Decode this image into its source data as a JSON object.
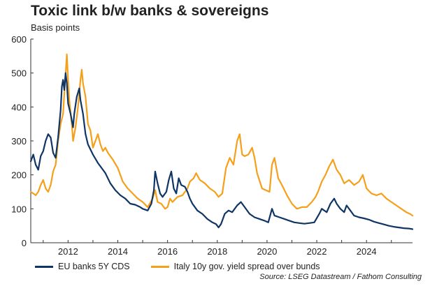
{
  "chart_data": {
    "type": "line",
    "title": "Toxic link b/w banks & sovereigns",
    "ylabel": "Basis points",
    "xlabel": "",
    "xlim": [
      2010.5,
      2025.85
    ],
    "ylim": [
      0,
      600
    ],
    "yticks": [
      0,
      100,
      200,
      300,
      400,
      500,
      600
    ],
    "xticks": [
      2012,
      2014,
      2016,
      2018,
      2020,
      2022,
      2024
    ],
    "yticklabels": [
      "0",
      "100",
      "200",
      "300",
      "400",
      "500",
      "600"
    ],
    "xticklabels": [
      "2012",
      "2014",
      "2016",
      "2018",
      "2020",
      "2022",
      "2024"
    ],
    "grid": false,
    "legend_position": "bottom",
    "series": [
      {
        "name": "EU banks 5Y CDS",
        "color": "#0f3566",
        "points": [
          [
            2010.5,
            240
          ],
          [
            2010.6,
            260
          ],
          [
            2010.7,
            230
          ],
          [
            2010.8,
            215
          ],
          [
            2010.9,
            255
          ],
          [
            2011.0,
            270
          ],
          [
            2011.1,
            300
          ],
          [
            2011.2,
            320
          ],
          [
            2011.3,
            310
          ],
          [
            2011.4,
            265
          ],
          [
            2011.5,
            250
          ],
          [
            2011.6,
            310
          ],
          [
            2011.7,
            390
          ],
          [
            2011.75,
            460
          ],
          [
            2011.8,
            480
          ],
          [
            2011.85,
            450
          ],
          [
            2011.9,
            500
          ],
          [
            2011.95,
            470
          ],
          [
            2012.0,
            410
          ],
          [
            2012.1,
            380
          ],
          [
            2012.2,
            340
          ],
          [
            2012.25,
            380
          ],
          [
            2012.35,
            430
          ],
          [
            2012.45,
            455
          ],
          [
            2012.5,
            420
          ],
          [
            2012.6,
            380
          ],
          [
            2012.7,
            320
          ],
          [
            2012.8,
            290
          ],
          [
            2013.0,
            260
          ],
          [
            2013.2,
            235
          ],
          [
            2013.4,
            215
          ],
          [
            2013.5,
            205
          ],
          [
            2013.7,
            175
          ],
          [
            2013.9,
            155
          ],
          [
            2014.1,
            140
          ],
          [
            2014.3,
            130
          ],
          [
            2014.5,
            115
          ],
          [
            2014.7,
            112
          ],
          [
            2014.9,
            105
          ],
          [
            2015.0,
            100
          ],
          [
            2015.2,
            95
          ],
          [
            2015.35,
            115
          ],
          [
            2015.45,
            155
          ],
          [
            2015.5,
            210
          ],
          [
            2015.6,
            175
          ],
          [
            2015.7,
            145
          ],
          [
            2015.8,
            135
          ],
          [
            2015.95,
            150
          ],
          [
            2016.05,
            185
          ],
          [
            2016.15,
            210
          ],
          [
            2016.25,
            160
          ],
          [
            2016.35,
            145
          ],
          [
            2016.45,
            190
          ],
          [
            2016.55,
            170
          ],
          [
            2016.7,
            165
          ],
          [
            2016.8,
            150
          ],
          [
            2016.9,
            130
          ],
          [
            2017.0,
            115
          ],
          [
            2017.2,
            95
          ],
          [
            2017.4,
            85
          ],
          [
            2017.6,
            70
          ],
          [
            2017.8,
            60
          ],
          [
            2017.95,
            55
          ],
          [
            2018.05,
            45
          ],
          [
            2018.15,
            55
          ],
          [
            2018.3,
            85
          ],
          [
            2018.45,
            95
          ],
          [
            2018.6,
            90
          ],
          [
            2018.8,
            110
          ],
          [
            2018.95,
            120
          ],
          [
            2019.1,
            105
          ],
          [
            2019.3,
            85
          ],
          [
            2019.5,
            75
          ],
          [
            2019.7,
            70
          ],
          [
            2019.9,
            65
          ],
          [
            2020.05,
            60
          ],
          [
            2020.2,
            100
          ],
          [
            2020.3,
            80
          ],
          [
            2020.5,
            75
          ],
          [
            2020.7,
            70
          ],
          [
            2020.9,
            65
          ],
          [
            2021.1,
            60
          ],
          [
            2021.3,
            58
          ],
          [
            2021.5,
            56
          ],
          [
            2021.7,
            58
          ],
          [
            2021.9,
            60
          ],
          [
            2022.1,
            85
          ],
          [
            2022.2,
            100
          ],
          [
            2022.4,
            90
          ],
          [
            2022.55,
            115
          ],
          [
            2022.7,
            130
          ],
          [
            2022.8,
            115
          ],
          [
            2022.95,
            100
          ],
          [
            2023.1,
            90
          ],
          [
            2023.2,
            110
          ],
          [
            2023.35,
            95
          ],
          [
            2023.5,
            80
          ],
          [
            2023.7,
            75
          ],
          [
            2023.9,
            72
          ],
          [
            2024.1,
            68
          ],
          [
            2024.3,
            62
          ],
          [
            2024.5,
            58
          ],
          [
            2024.7,
            54
          ],
          [
            2024.9,
            50
          ],
          [
            2025.1,
            47
          ],
          [
            2025.3,
            45
          ],
          [
            2025.5,
            43
          ],
          [
            2025.7,
            42
          ],
          [
            2025.85,
            40
          ]
        ]
      },
      {
        "name": "Italy 10y gov. yield spread over bunds",
        "color": "#f5a01a",
        "points": [
          [
            2010.5,
            150
          ],
          [
            2010.6,
            145
          ],
          [
            2010.7,
            140
          ],
          [
            2010.8,
            150
          ],
          [
            2010.9,
            170
          ],
          [
            2011.0,
            185
          ],
          [
            2011.1,
            160
          ],
          [
            2011.2,
            150
          ],
          [
            2011.3,
            170
          ],
          [
            2011.4,
            210
          ],
          [
            2011.5,
            230
          ],
          [
            2011.6,
            300
          ],
          [
            2011.7,
            350
          ],
          [
            2011.8,
            380
          ],
          [
            2011.85,
            440
          ],
          [
            2011.9,
            495
          ],
          [
            2011.95,
            555
          ],
          [
            2012.0,
            480
          ],
          [
            2012.05,
            420
          ],
          [
            2012.15,
            350
          ],
          [
            2012.2,
            300
          ],
          [
            2012.3,
            340
          ],
          [
            2012.4,
            400
          ],
          [
            2012.5,
            480
          ],
          [
            2012.55,
            510
          ],
          [
            2012.6,
            470
          ],
          [
            2012.7,
            430
          ],
          [
            2012.8,
            350
          ],
          [
            2012.9,
            330
          ],
          [
            2013.0,
            280
          ],
          [
            2013.1,
            300
          ],
          [
            2013.2,
            320
          ],
          [
            2013.3,
            290
          ],
          [
            2013.4,
            270
          ],
          [
            2013.5,
            280
          ],
          [
            2013.6,
            265
          ],
          [
            2013.8,
            245
          ],
          [
            2014.0,
            220
          ],
          [
            2014.2,
            180
          ],
          [
            2014.4,
            160
          ],
          [
            2014.6,
            145
          ],
          [
            2014.8,
            130
          ],
          [
            2015.0,
            120
          ],
          [
            2015.2,
            105
          ],
          [
            2015.4,
            130
          ],
          [
            2015.5,
            155
          ],
          [
            2015.6,
            120
          ],
          [
            2015.75,
            115
          ],
          [
            2015.9,
            100
          ],
          [
            2016.0,
            105
          ],
          [
            2016.1,
            130
          ],
          [
            2016.2,
            120
          ],
          [
            2016.4,
            135
          ],
          [
            2016.6,
            140
          ],
          [
            2016.8,
            160
          ],
          [
            2016.9,
            180
          ],
          [
            2017.05,
            190
          ],
          [
            2017.15,
            205
          ],
          [
            2017.3,
            185
          ],
          [
            2017.5,
            175
          ],
          [
            2017.7,
            160
          ],
          [
            2017.9,
            150
          ],
          [
            2018.05,
            135
          ],
          [
            2018.2,
            145
          ],
          [
            2018.35,
            220
          ],
          [
            2018.5,
            250
          ],
          [
            2018.65,
            230
          ],
          [
            2018.8,
            300
          ],
          [
            2018.9,
            320
          ],
          [
            2019.0,
            260
          ],
          [
            2019.1,
            255
          ],
          [
            2019.25,
            260
          ],
          [
            2019.4,
            280
          ],
          [
            2019.5,
            250
          ],
          [
            2019.6,
            205
          ],
          [
            2019.8,
            160
          ],
          [
            2019.95,
            155
          ],
          [
            2020.1,
            150
          ],
          [
            2020.2,
            230
          ],
          [
            2020.3,
            250
          ],
          [
            2020.45,
            190
          ],
          [
            2020.6,
            170
          ],
          [
            2020.8,
            140
          ],
          [
            2021.0,
            115
          ],
          [
            2021.2,
            100
          ],
          [
            2021.4,
            105
          ],
          [
            2021.6,
            105
          ],
          [
            2021.8,
            120
          ],
          [
            2021.95,
            135
          ],
          [
            2022.05,
            150
          ],
          [
            2022.2,
            180
          ],
          [
            2022.35,
            200
          ],
          [
            2022.5,
            225
          ],
          [
            2022.65,
            245
          ],
          [
            2022.8,
            215
          ],
          [
            2022.95,
            200
          ],
          [
            2023.1,
            175
          ],
          [
            2023.3,
            185
          ],
          [
            2023.5,
            170
          ],
          [
            2023.7,
            180
          ],
          [
            2023.85,
            200
          ],
          [
            2024.0,
            160
          ],
          [
            2024.2,
            145
          ],
          [
            2024.4,
            140
          ],
          [
            2024.6,
            145
          ],
          [
            2024.8,
            130
          ],
          [
            2025.0,
            120
          ],
          [
            2025.2,
            110
          ],
          [
            2025.4,
            100
          ],
          [
            2025.6,
            90
          ],
          [
            2025.75,
            85
          ],
          [
            2025.85,
            80
          ]
        ]
      }
    ]
  },
  "source": "Source: LSEG Datastream / Fathom Consulting"
}
